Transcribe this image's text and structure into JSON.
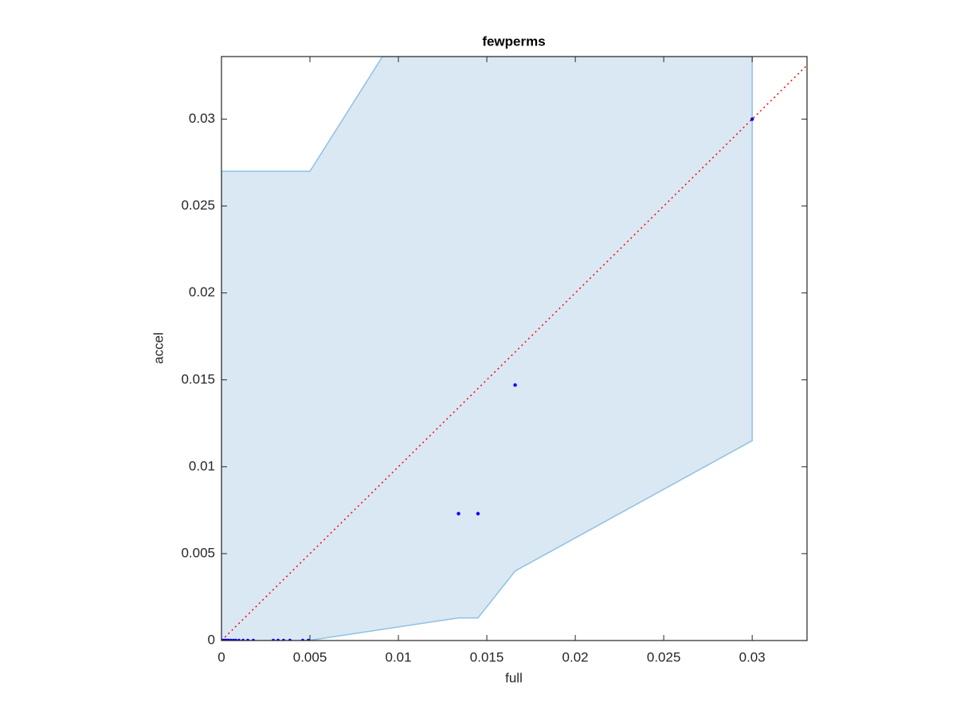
{
  "chart_data": {
    "type": "scatter",
    "title": "fewperms",
    "xlabel": "full",
    "ylabel": "accel",
    "xlim": [
      0,
      0.0331
    ],
    "ylim": [
      0,
      0.0336
    ],
    "xticks": [
      0,
      0.005,
      0.01,
      0.015,
      0.02,
      0.025,
      0.03
    ],
    "yticks": [
      0,
      0.005,
      0.01,
      0.015,
      0.02,
      0.025,
      0.03
    ],
    "band": {
      "color": "#dae8f4",
      "edge_color": "#8ec1e3",
      "x": [
        0,
        0.0049,
        0.0134,
        0.0145,
        0.0166,
        0.03,
        0.03,
        0.0091,
        0.005,
        0
      ],
      "y": [
        0,
        0,
        0.0013,
        0.0013,
        0.004,
        0.0115,
        0.0336,
        0.0336,
        0.027,
        0.027
      ]
    },
    "reference_line": {
      "color": "#ff0000",
      "x": [
        0,
        0.034
      ],
      "y": [
        0,
        0.034
      ]
    },
    "series": [
      {
        "color": "#0000ff",
        "x": [
          0,
          5e-05,
          0.00014,
          0.00023,
          0.00032,
          0.00041,
          0.00054,
          0.00068,
          0.00081,
          0.00099,
          0.00122,
          0.00149,
          0.0018,
          0.00293,
          0.0032,
          0.00351,
          0.00387,
          0.00459,
          0.00491,
          0.0134,
          0.0145,
          0.0166,
          0.03
        ],
        "values": [
          0,
          0,
          0,
          0,
          0,
          0,
          0,
          0,
          0,
          0,
          0,
          0,
          0,
          0,
          0,
          0,
          0,
          0,
          0,
          0.0073,
          0.0073,
          0.0147,
          0.03
        ]
      }
    ]
  }
}
